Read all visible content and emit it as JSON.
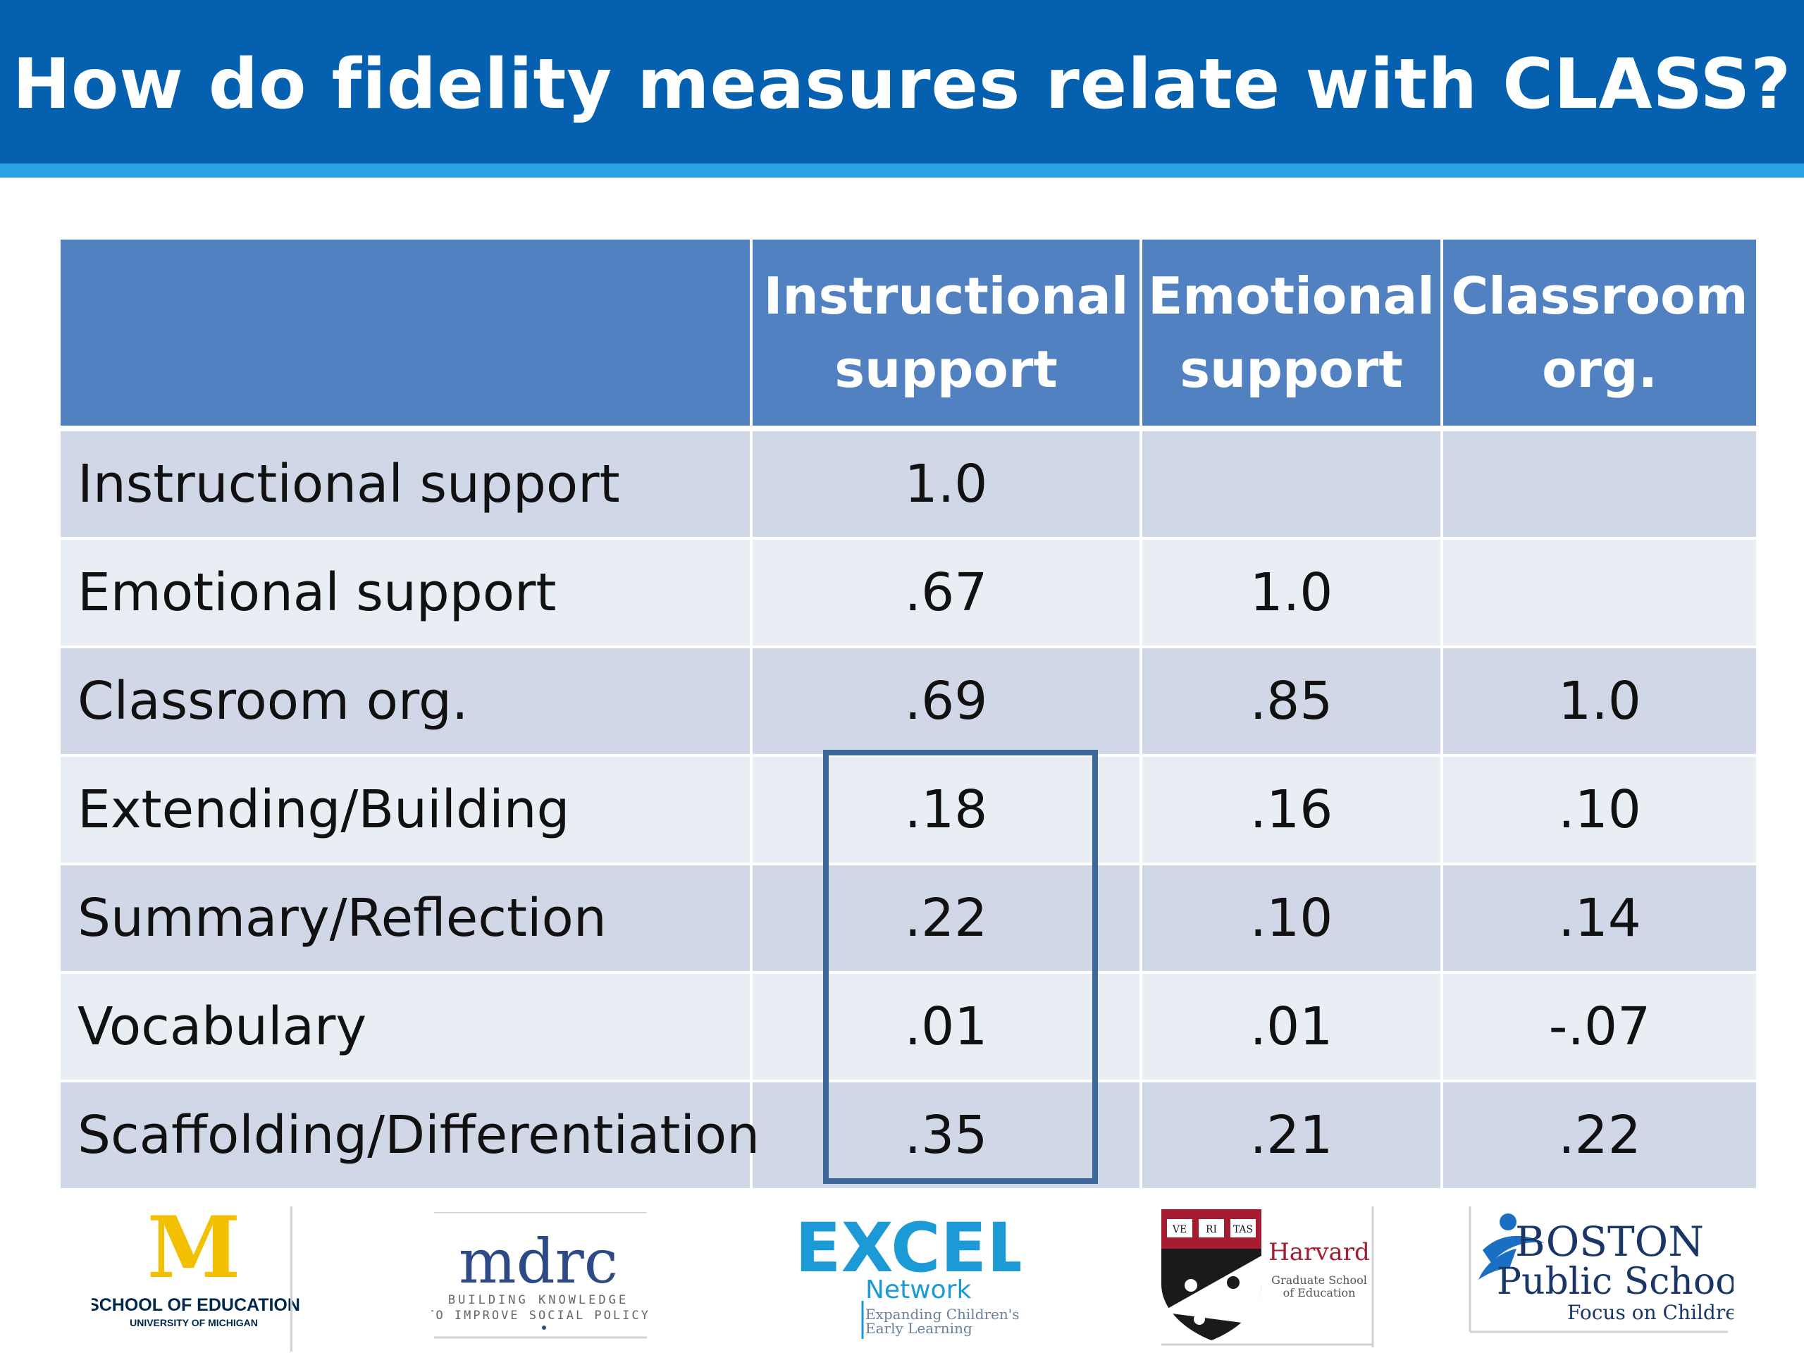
{
  "title": "How do fidelity measures relate with CLASS?",
  "table": {
    "headers": [
      "",
      "Instructional support",
      "Emotional support",
      "Classroom org."
    ],
    "rows": [
      {
        "label": "Instructional support",
        "values": [
          "1.0",
          "",
          ""
        ]
      },
      {
        "label": "Emotional support",
        "values": [
          ".67",
          "1.0",
          ""
        ]
      },
      {
        "label": "Classroom org.",
        "values": [
          ".69",
          ".85",
          "1.0"
        ]
      },
      {
        "label": "Extending/Building",
        "values": [
          ".18",
          ".16",
          ".10"
        ]
      },
      {
        "label": "Summary/Reflection",
        "values": [
          ".22",
          ".10",
          ".14"
        ]
      },
      {
        "label": "Vocabulary",
        "values": [
          ".01",
          ".01",
          "-.07"
        ]
      },
      {
        "label": "Scaffolding/Differentiation",
        "values": [
          ".35",
          ".21",
          ".22"
        ]
      }
    ]
  },
  "logos": {
    "umich": {
      "letter": "M",
      "line1": "SCHOOL OF EDUCATION",
      "line2": "UNIVERSITY OF MICHIGAN"
    },
    "mdrc": {
      "name": "mdrc",
      "line1": "BUILDING KNOWLEDGE",
      "line2": "TO IMPROVE SOCIAL POLICY"
    },
    "excel": {
      "name": "EXCEL",
      "network": "Network",
      "line1": "Expanding Children's",
      "line2": "Early Learning"
    },
    "harvard": {
      "name": "Harvard",
      "line1": "Graduate School",
      "line2": "of Education",
      "crest_letters": [
        "VE",
        "RI",
        "TAS"
      ]
    },
    "boston": {
      "line1": "BOSTON",
      "line2": "Public Schools",
      "line3": "Focus on Children"
    }
  },
  "colors": {
    "header": "#0561b0",
    "header_stripe": "#2aa3e6",
    "table_header": "#5181c0",
    "row_odd": "#d0d8e8",
    "row_even": "#e9edf4",
    "highlight_box": "#3d6799",
    "umich_maize": "#f2c000",
    "umich_blue": "#00274c",
    "excel_blue": "#1b9ad6",
    "harvard_crimson": "#a51c30"
  }
}
